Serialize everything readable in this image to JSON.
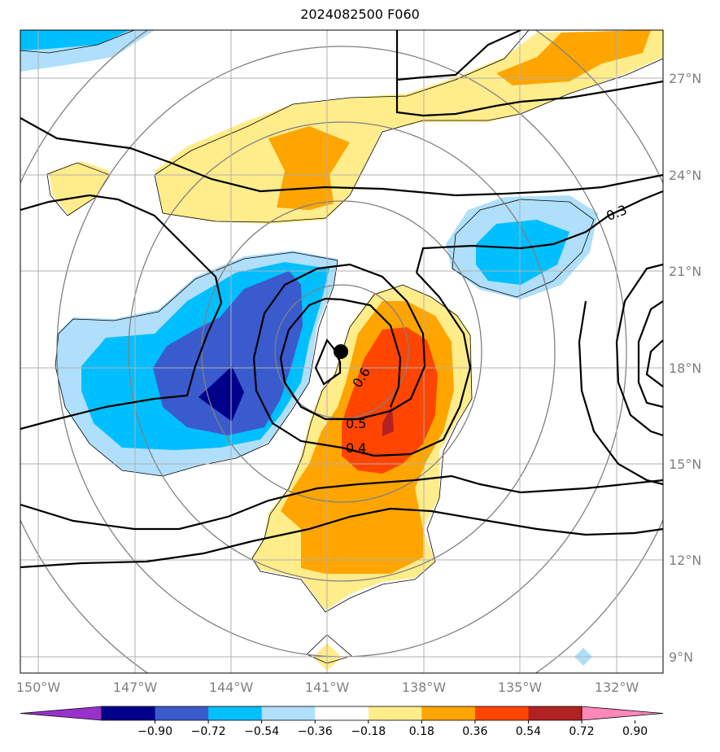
{
  "title": "2024082500 F060",
  "lat_labels": [
    "27°N",
    "24°N",
    "21°N",
    "18°N",
    "15°N",
    "12°N",
    "9°N"
  ],
  "lon_labels": [
    "150°W",
    "147°W",
    "144°W",
    "141°W",
    "138°W",
    "135°W",
    "132°W"
  ],
  "colorbar": {
    "ticks": [
      "−0.90",
      "−0.72",
      "−0.54",
      "−0.36",
      "−0.18",
      "0.18",
      "0.36",
      "0.54",
      "0.72",
      "0.90"
    ],
    "colors": [
      "#9932cc",
      "#00008b",
      "#3a5bcd",
      "#00bfff",
      "#afdffa",
      "#ffffff",
      "#ffec8b",
      "#ffa500",
      "#ff4500",
      "#b22222",
      "#ff88bb"
    ]
  },
  "contour_labels": [
    "0.3",
    "0.6",
    "0.5",
    "0.4"
  ],
  "fill_colors": {
    "neg_light": "#afdffa",
    "neg_mid": "#00bfff",
    "neg_dark": "#3a5bcd",
    "neg_darkest": "#00008b",
    "pos_light": "#ffec8b",
    "pos_mid": "#ffa500",
    "pos_dark": "#ff4500",
    "pos_darkest": "#b22222"
  },
  "center_marker": "black-dot"
}
